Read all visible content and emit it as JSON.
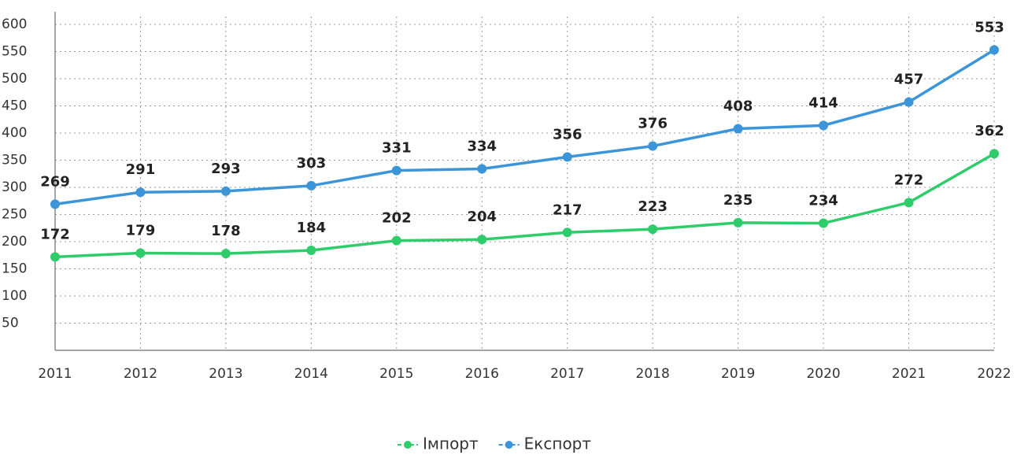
{
  "chart_data": {
    "type": "line",
    "x": [
      2011,
      2012,
      2013,
      2014,
      2015,
      2016,
      2017,
      2018,
      2019,
      2020,
      2021,
      2022
    ],
    "xlim": [
      2011,
      2022
    ],
    "xticks": [
      2011,
      2012,
      2013,
      2014,
      2015,
      2016,
      2017,
      2018,
      2019,
      2020,
      2021,
      2022
    ],
    "ylim": [
      0,
      600
    ],
    "yticks": [
      50,
      100,
      150,
      200,
      250,
      300,
      350,
      400,
      450,
      500,
      550,
      600
    ],
    "grid": true,
    "legend": "bottom",
    "series": [
      {
        "name": "Імпорт",
        "color": "#2ecc6a",
        "values": [
          172,
          179,
          178,
          184,
          202,
          204,
          217,
          223,
          235,
          234,
          272,
          362
        ]
      },
      {
        "name": "Експорт",
        "color": "#3b95d8",
        "values": [
          269,
          291,
          293,
          303,
          331,
          334,
          356,
          376,
          408,
          414,
          457,
          553
        ]
      }
    ]
  }
}
